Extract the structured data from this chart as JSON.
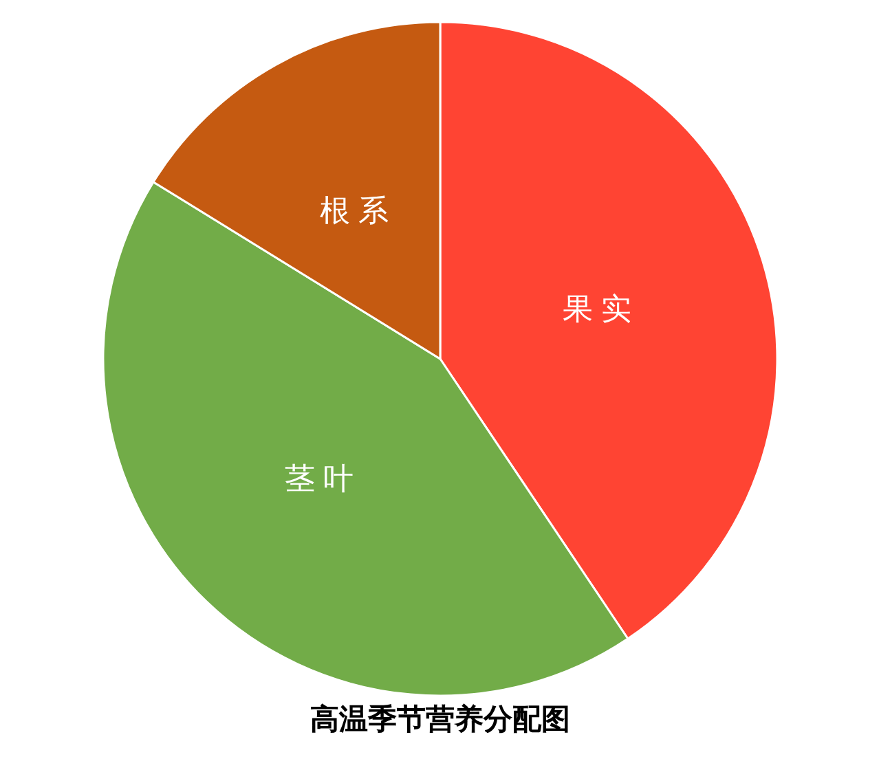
{
  "chart_data": {
    "type": "pie",
    "title": "高温季节营养分配图",
    "categories": [
      "果实",
      "茎叶",
      "根系"
    ],
    "values": [
      40.6,
      43.2,
      16.2
    ],
    "colors": [
      "#ff4433",
      "#72ac48",
      "#c55a11"
    ]
  }
}
